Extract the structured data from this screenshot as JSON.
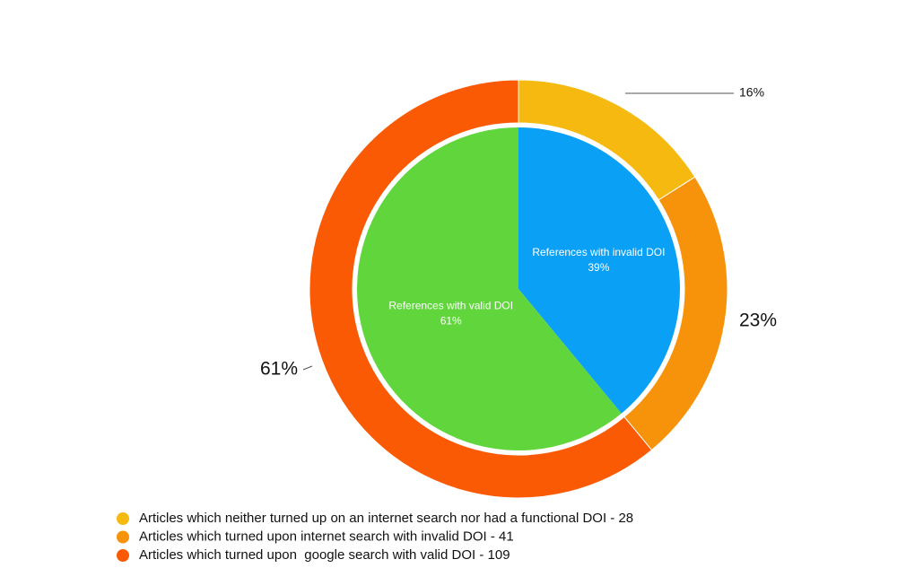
{
  "chart_data": {
    "type": "nested-pie",
    "inner": {
      "categories": [
        "References with invalid DOI",
        "References with valid DOI"
      ],
      "values": [
        39,
        61
      ],
      "value_labels": [
        "39%",
        "61%"
      ],
      "colors": [
        "#0aa0f5",
        "#60d63c"
      ]
    },
    "outer": {
      "categories": [
        "Articles which neither turned up on an internet search nor had a functional DOI - 28",
        "Articles which turned upon internet search with invalid DOI - 41",
        "Articles which turned upon  google search with valid DOI - 109"
      ],
      "values": [
        16,
        23,
        61
      ],
      "value_labels": [
        "16%",
        "23%",
        "61%"
      ],
      "colors": [
        "#f5b90f",
        "#f7930a",
        "#fb5a05"
      ]
    }
  }
}
